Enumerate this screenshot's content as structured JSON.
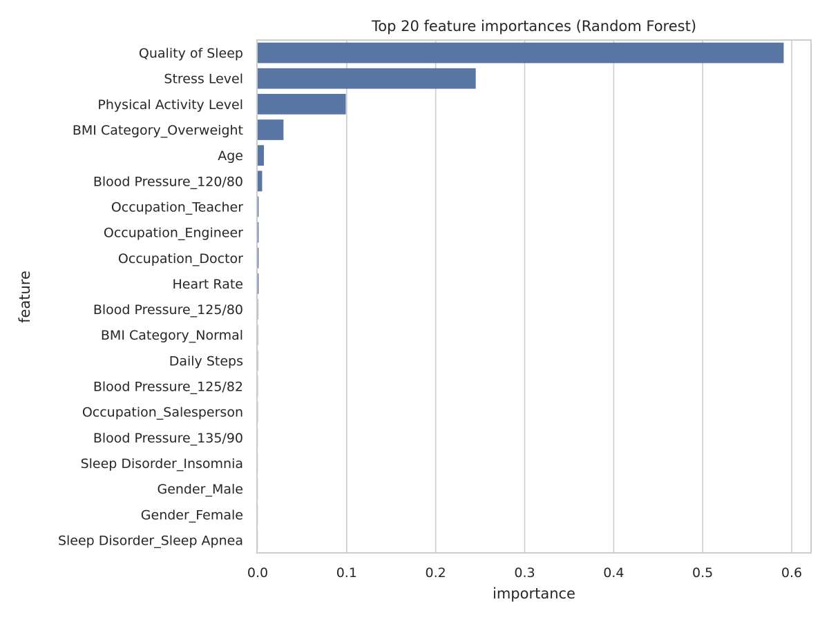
{
  "chart_data": {
    "type": "bar",
    "orientation": "horizontal",
    "title": "Top 20 feature importances (Random Forest)",
    "xlabel": "importance",
    "ylabel": "feature",
    "xlim": [
      0.0,
      0.62
    ],
    "xticks": [
      0.0,
      0.1,
      0.2,
      0.3,
      0.4,
      0.5,
      0.6
    ],
    "xtick_labels": [
      "0.0",
      "0.1",
      "0.2",
      "0.3",
      "0.4",
      "0.5",
      "0.6"
    ],
    "grid": "vertical",
    "bar_color": "#5975a4",
    "categories": [
      "Quality of Sleep",
      "Stress Level",
      "Physical Activity Level",
      "BMI Category_Overweight",
      "Age",
      "Blood Pressure_120/80",
      "Occupation_Teacher",
      "Occupation_Engineer",
      "Occupation_Doctor",
      "Heart Rate",
      "Blood Pressure_125/80",
      "BMI Category_Normal",
      "Daily Steps",
      "Blood Pressure_125/82",
      "Occupation_Salesperson",
      "Blood Pressure_135/90",
      "Sleep Disorder_Insomnia",
      "Gender_Male",
      "Gender_Female",
      "Sleep Disorder_Sleep Apnea"
    ],
    "values": [
      0.591,
      0.245,
      0.099,
      0.029,
      0.007,
      0.005,
      0.001,
      0.001,
      0.001,
      0.001,
      0.0004,
      0.0003,
      0.0003,
      0.0002,
      0.0002,
      0.0001,
      0.0001,
      0.0001,
      0.0001,
      0.0001
    ]
  }
}
